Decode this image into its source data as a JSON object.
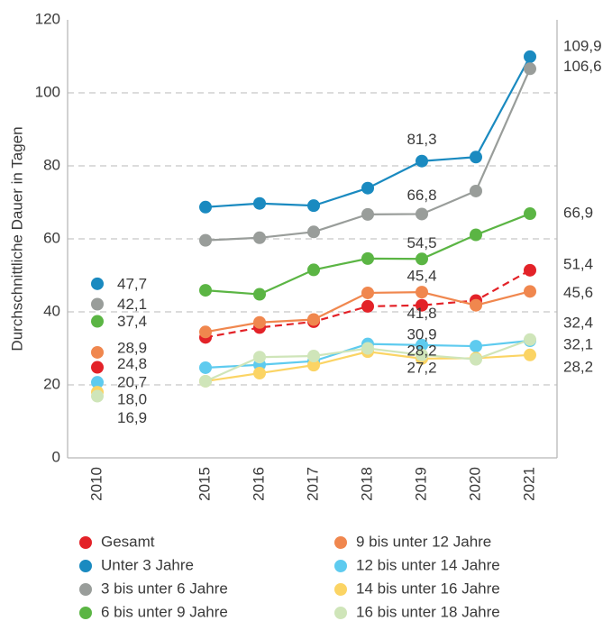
{
  "chart_data": {
    "type": "line",
    "y_label": "Durchschnittliche Dauer in Tagen",
    "categories": [
      "2010",
      null,
      "2015",
      "2016",
      "2017",
      "2018",
      "2019",
      "2020",
      "2021"
    ],
    "ylim": [
      0,
      120
    ],
    "yticks": [
      0,
      20,
      40,
      60,
      80,
      100,
      120
    ],
    "grid": true,
    "series": [
      {
        "name": "Gesamt",
        "color": "#e32228",
        "dashed": true,
        "values": [
          24.8,
          null,
          33.0,
          35.7,
          37.3,
          41.5,
          41.8,
          43.1,
          51.4
        ],
        "value_labels": [
          "24,8",
          null,
          null,
          null,
          null,
          null,
          "41,8",
          null,
          "51,4"
        ]
      },
      {
        "name": "Unter 3 Jahre",
        "color": "#1a8ac0",
        "values": [
          47.7,
          null,
          68.7,
          69.7,
          69.1,
          73.9,
          81.3,
          82.4,
          109.9
        ],
        "value_labels": [
          "47,7",
          null,
          null,
          null,
          null,
          null,
          "81,3",
          null,
          "109,9"
        ]
      },
      {
        "name": "3 bis unter 6 Jahre",
        "color": "#999d9a",
        "values": [
          42.1,
          null,
          59.6,
          60.3,
          61.9,
          66.7,
          66.8,
          73.1,
          106.6
        ],
        "value_labels": [
          "42,1",
          null,
          null,
          null,
          null,
          null,
          "66,8",
          null,
          "106,6"
        ]
      },
      {
        "name": "6 bis unter 9 Jahre",
        "color": "#5bb544",
        "values": [
          37.4,
          null,
          45.9,
          44.8,
          51.5,
          54.6,
          54.5,
          61.1,
          66.9
        ],
        "value_labels": [
          "37,4",
          null,
          null,
          null,
          null,
          null,
          "54,5",
          null,
          "66,9"
        ]
      },
      {
        "name": "9 bis unter 12 Jahre",
        "color": "#f0874e",
        "values": [
          28.9,
          null,
          34.5,
          37.1,
          37.9,
          45.2,
          45.4,
          41.8,
          45.6
        ],
        "value_labels": [
          "28,9",
          null,
          null,
          null,
          null,
          null,
          "45,4",
          null,
          "45,6"
        ]
      },
      {
        "name": "12 bis unter 14 Jahre",
        "color": "#5ecbef",
        "values": [
          20.7,
          null,
          24.7,
          25.5,
          26.5,
          31.2,
          30.9,
          30.6,
          32.1
        ],
        "value_labels": [
          "20,7",
          null,
          null,
          null,
          null,
          null,
          "30,9",
          null,
          "32,1"
        ]
      },
      {
        "name": "14 bis unter 16 Jahre",
        "color": "#fbd464",
        "values": [
          18.0,
          null,
          21.0,
          23.2,
          25.4,
          29.1,
          27.2,
          27.3,
          28.2
        ],
        "value_labels": [
          "18,0",
          null,
          null,
          null,
          null,
          null,
          "27,2",
          null,
          "28,2"
        ]
      },
      {
        "name": "16 bis unter 18 Jahre",
        "color": "#cfe5b9",
        "values": [
          16.9,
          null,
          21.0,
          27.6,
          27.9,
          30.0,
          28.2,
          27.0,
          32.4
        ],
        "value_labels": [
          "16,9",
          null,
          null,
          null,
          null,
          null,
          "28,2",
          null,
          "32,4"
        ]
      }
    ]
  }
}
